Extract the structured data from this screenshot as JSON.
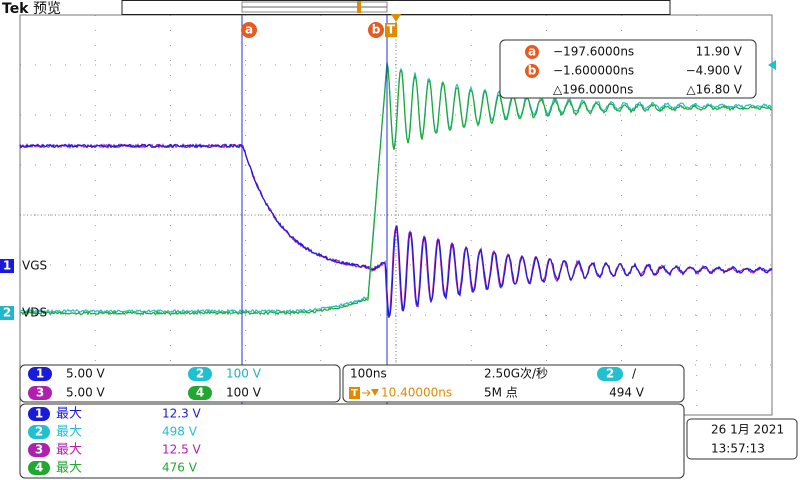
{
  "header": {
    "brand": "Tek",
    "mode": "预览"
  },
  "cursors": {
    "a": {
      "label": "a",
      "time": "−197.6000ns",
      "value": "11.90 V"
    },
    "b": {
      "label": "b",
      "time": "−1.600000ns",
      "value": "−4.900 V"
    },
    "delta": {
      "time": "△196.0000ns",
      "value": "△16.80 V"
    }
  },
  "traces": [
    {
      "number": "1",
      "label": "VGS"
    },
    {
      "number": "2",
      "label": "VDS"
    }
  ],
  "channels": [
    {
      "number": "1",
      "scale": "5.00 V"
    },
    {
      "number": "2",
      "scale": "100 V"
    },
    {
      "number": "3",
      "scale": "5.00 V"
    },
    {
      "number": "4",
      "scale": "100 V"
    }
  ],
  "timebase": {
    "scale": "100ns",
    "sample_rate": "2.50G次/秒",
    "trigger_delay": "10.40000ns",
    "record_length": "5M 点",
    "trigger_channel": "2",
    "trigger_slope": "/",
    "trigger_level": "494 V"
  },
  "measurements": [
    {
      "channel": "1",
      "label": "最大",
      "value": "12.3 V"
    },
    {
      "channel": "2",
      "label": "最大",
      "value": "498 V"
    },
    {
      "channel": "3",
      "label": "最大",
      "value": "12.5 V"
    },
    {
      "channel": "4",
      "label": "最大",
      "value": "476 V"
    }
  ],
  "datetime": {
    "date": "26 1月 2021",
    "time": "13:57:13"
  }
}
